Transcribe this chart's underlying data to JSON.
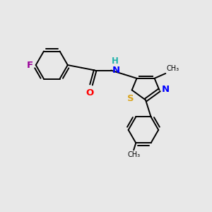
{
  "bg_color": "#e8e8e8",
  "bond_color": "#000000",
  "atom_colors": {
    "F": "#990099",
    "O": "#FF0000",
    "N": "#0000FF",
    "S": "#DAA520",
    "H": "#20B2AA",
    "C": "#000000"
  },
  "font_size": 8.5
}
